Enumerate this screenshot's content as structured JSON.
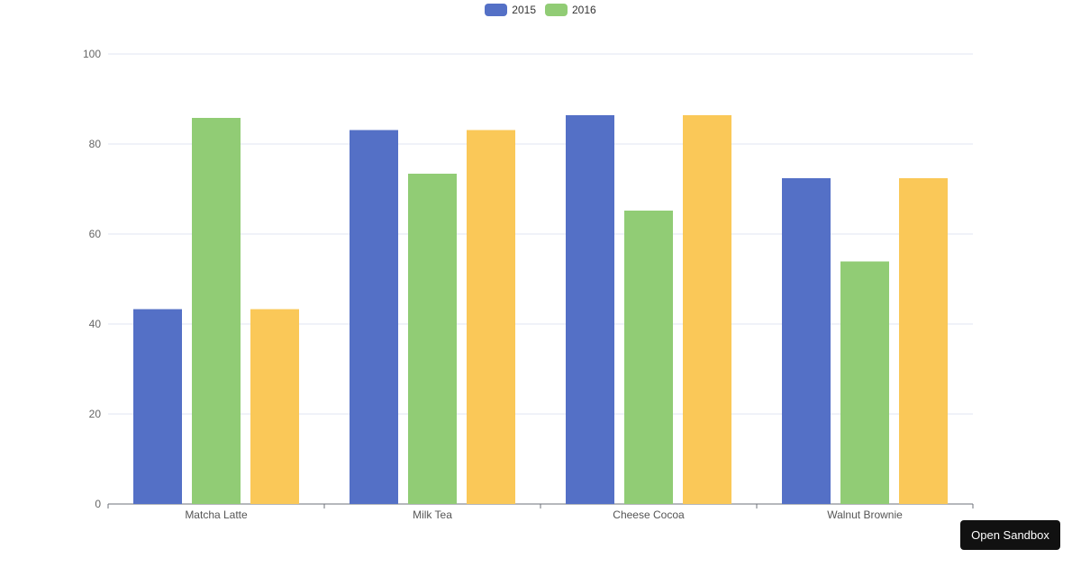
{
  "chart_data": {
    "type": "bar",
    "categories": [
      "Matcha Latte",
      "Milk Tea",
      "Cheese Cocoa",
      "Walnut Brownie"
    ],
    "series": [
      {
        "name": "2015",
        "values": [
          43.3,
          83.1,
          86.4,
          72.4
        ],
        "color": "#5470c6"
      },
      {
        "name": "2016",
        "values": [
          85.8,
          73.4,
          65.2,
          53.9
        ],
        "color": "#91cc75"
      },
      {
        "name": "",
        "values": [
          43.3,
          83.1,
          86.4,
          72.4
        ],
        "color": "#fac858"
      }
    ],
    "ylim": [
      0,
      100
    ],
    "yticks": [
      0,
      20,
      40,
      60,
      80,
      100
    ],
    "grid": true,
    "legend_position": "top-center"
  },
  "legend": {
    "items": [
      {
        "label": "2015",
        "color": "#5470c6"
      },
      {
        "label": "2016",
        "color": "#91cc75"
      }
    ]
  },
  "toolbar": {
    "open_sandbox_label": "Open Sandbox"
  }
}
